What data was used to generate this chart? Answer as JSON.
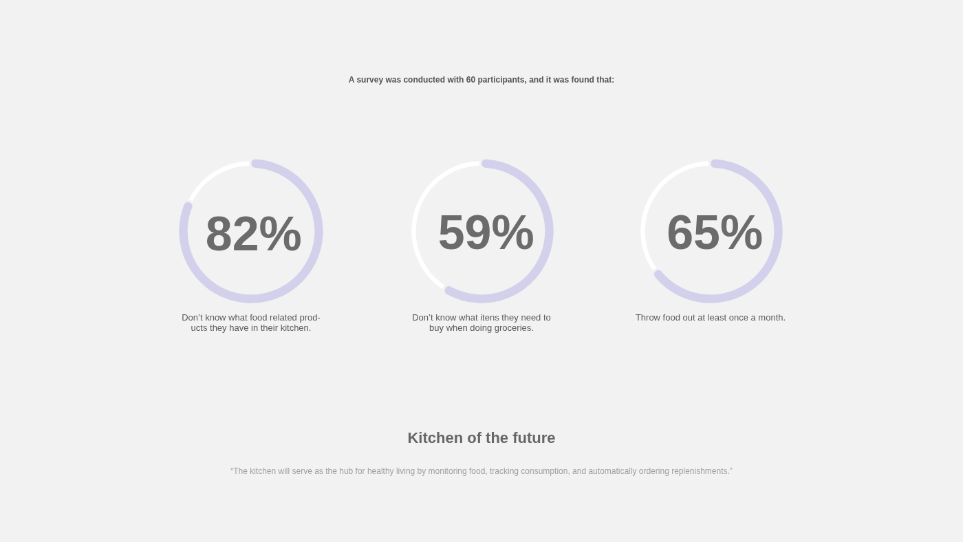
{
  "chart_data": [
    {
      "type": "other",
      "title": "A survey was conducted with 60 participants, and it was found that:"
    },
    {
      "type": "donut",
      "categories": [
        null,
        null
      ],
      "values": [
        82,
        18
      ],
      "colors": [
        "#d3d0ec",
        "#ffffff"
      ],
      "value_labels": [
        "82%",
        null
      ],
      "xlabel": "Don’t know what food related prod-\nucts they have in their kitchen."
    },
    {
      "type": "donut",
      "categories": [
        null,
        null
      ],
      "values": [
        59,
        41
      ],
      "colors": [
        "#d3d0ec",
        "#ffffff"
      ],
      "value_labels": [
        "59%",
        null
      ],
      "xlabel": "Don’t know what itens they need to\nbuy when doing groceries."
    },
    {
      "type": "donut",
      "categories": [
        null,
        null
      ],
      "values": [
        65,
        35
      ],
      "colors": [
        "#d3d0ec",
        "#ffffff"
      ],
      "value_labels": [
        "65%",
        null
      ],
      "xlabel": "Throw food out at least once a month."
    },
    {
      "type": "other",
      "title": "Kitchen of the future",
      "annotations": [
        "“The kitchen will serve as the hub for healthy living by monitoring food, tracking consumption, and automatically ordering replenishments.”"
      ]
    }
  ]
}
